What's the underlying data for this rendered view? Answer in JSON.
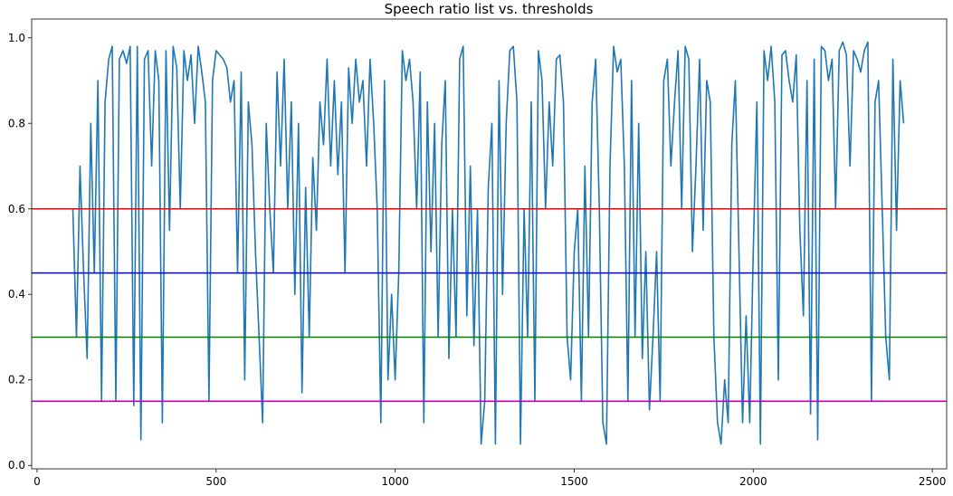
{
  "chart_data": {
    "type": "line",
    "title": "Speech ratio list vs. thresholds",
    "xlabel": "",
    "ylabel": "",
    "xlim": [
      -15,
      2540
    ],
    "ylim": [
      -0.008,
      1.044
    ],
    "xticks": [
      "0",
      "500",
      "1000",
      "1500",
      "2000",
      "2500"
    ],
    "xtick_values": [
      0,
      500,
      1000,
      1500,
      2000,
      2500
    ],
    "yticks": [
      "0.0",
      "0.2",
      "0.4",
      "0.6",
      "0.8",
      "1.0"
    ],
    "ytick_values": [
      0,
      0.2,
      0.4,
      0.6,
      0.8,
      1.0
    ],
    "grid": false,
    "series": [
      {
        "color": "#1f77b4",
        "x_start": 100,
        "x_step": 10,
        "values": [
          0.6,
          0.3,
          0.7,
          0.45,
          0.25,
          0.8,
          0.45,
          0.9,
          0.15,
          0.85,
          0.95,
          0.98,
          0.15,
          0.95,
          0.97,
          0.94,
          0.98,
          0.14,
          0.98,
          0.06,
          0.95,
          0.97,
          0.7,
          0.97,
          0.9,
          0.1,
          0.97,
          0.55,
          0.98,
          0.93,
          0.6,
          0.97,
          0.9,
          0.96,
          0.8,
          0.98,
          0.92,
          0.85,
          0.15,
          0.9,
          0.97,
          0.96,
          0.95,
          0.93,
          0.85,
          0.9,
          0.45,
          0.92,
          0.2,
          0.85,
          0.75,
          0.5,
          0.3,
          0.1,
          0.8,
          0.6,
          0.45,
          0.92,
          0.7,
          0.95,
          0.6,
          0.85,
          0.4,
          0.8,
          0.17,
          0.65,
          0.3,
          0.72,
          0.55,
          0.85,
          0.75,
          0.95,
          0.7,
          0.9,
          0.68,
          0.85,
          0.45,
          0.93,
          0.8,
          0.95,
          0.85,
          0.9,
          0.7,
          0.95,
          0.8,
          0.6,
          0.1,
          0.9,
          0.2,
          0.4,
          0.2,
          0.45,
          0.97,
          0.9,
          0.95,
          0.85,
          0.6,
          0.92,
          0.1,
          0.85,
          0.5,
          0.8,
          0.3,
          0.75,
          0.9,
          0.25,
          0.6,
          0.3,
          0.95,
          0.98,
          0.35,
          0.7,
          0.28,
          0.6,
          0.05,
          0.15,
          0.65,
          0.8,
          0.05,
          0.9,
          0.4,
          0.8,
          0.97,
          0.98,
          0.85,
          0.05,
          0.6,
          0.3,
          0.85,
          0.15,
          0.97,
          0.9,
          0.6,
          0.85,
          0.7,
          0.95,
          0.96,
          0.85,
          0.3,
          0.2,
          0.5,
          0.6,
          0.15,
          0.7,
          0.3,
          0.85,
          0.95,
          0.6,
          0.1,
          0.05,
          0.7,
          0.98,
          0.92,
          0.95,
          0.7,
          0.15,
          0.9,
          0.3,
          0.8,
          0.25,
          0.5,
          0.13,
          0.3,
          0.5,
          0.15,
          0.9,
          0.95,
          0.7,
          0.85,
          0.97,
          0.6,
          0.98,
          0.95,
          0.5,
          0.7,
          0.95,
          0.55,
          0.9,
          0.85,
          0.3,
          0.1,
          0.05,
          0.2,
          0.1,
          0.75,
          0.9,
          0.5,
          0.1,
          0.35,
          0.1,
          0.5,
          0.85,
          0.05,
          0.97,
          0.9,
          0.98,
          0.85,
          0.2,
          0.96,
          0.97,
          0.9,
          0.85,
          0.96,
          0.55,
          0.35,
          0.9,
          0.12,
          0.95,
          0.06,
          0.98,
          0.97,
          0.9,
          0.95,
          0.6,
          0.97,
          0.99,
          0.96,
          0.7,
          0.97,
          0.95,
          0.92,
          0.97,
          0.99,
          0.15,
          0.85,
          0.9,
          0.6,
          0.3,
          0.2,
          0.95,
          0.55,
          0.9,
          0.8
        ]
      }
    ],
    "thresholds": [
      {
        "value": 0.6,
        "color": "#ff0000"
      },
      {
        "value": 0.45,
        "color": "#0000ff"
      },
      {
        "value": 0.3,
        "color": "#008000"
      },
      {
        "value": 0.15,
        "color": "#bf00bf"
      }
    ]
  }
}
